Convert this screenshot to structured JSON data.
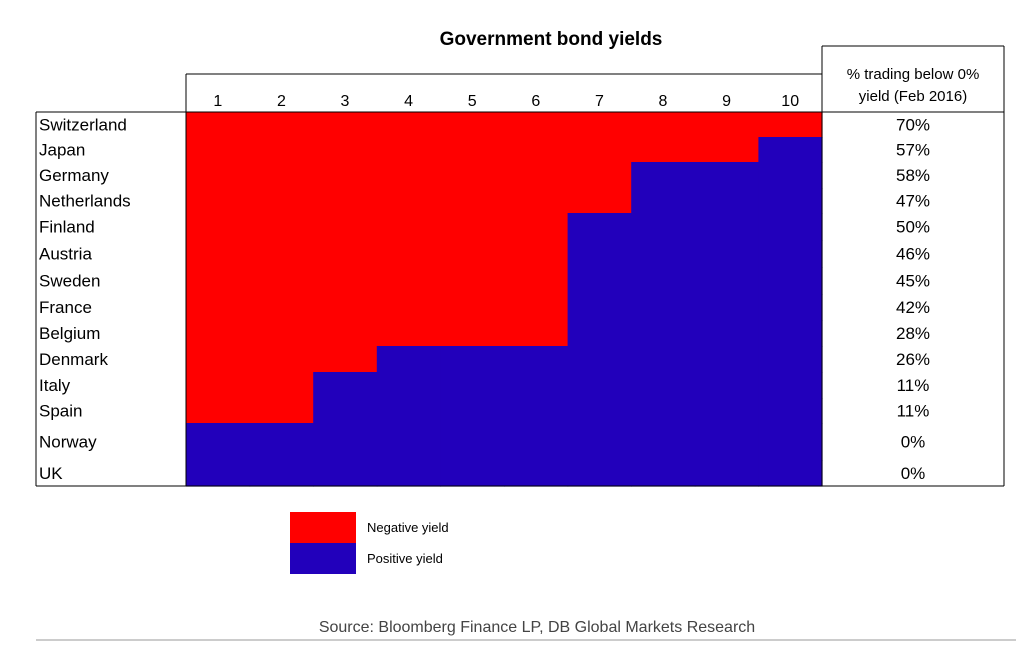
{
  "chart_data": {
    "type": "heatmap",
    "title": "Government bond yields",
    "x_categories": [
      "1",
      "2",
      "3",
      "4",
      "5",
      "6",
      "7",
      "8",
      "9",
      "10"
    ],
    "countries": [
      "Switzerland",
      "Japan",
      "Germany",
      "Netherlands",
      "Finland",
      "Austria",
      "Sweden",
      "France",
      "Belgium",
      "Denmark",
      "Italy",
      "Spain",
      "Norway",
      "UK"
    ],
    "negative_up_to_maturity": [
      10,
      9,
      7,
      7,
      6,
      6,
      6,
      6,
      6,
      3,
      2,
      2,
      0,
      0
    ],
    "right_column_header": [
      "% trading below 0%",
      "yield (Feb 2016)"
    ],
    "pct_below_zero": [
      "70%",
      "57%",
      "58%",
      "47%",
      "50%",
      "46%",
      "45%",
      "42%",
      "28%",
      "26%",
      "11%",
      "11%",
      "0%",
      "0%"
    ],
    "legend": [
      {
        "label": "Negative yield",
        "color": "#ff0000"
      },
      {
        "label": "Positive yield",
        "color": "#2200bb"
      }
    ],
    "source": "Source: Bloomberg Finance LP, DB Global Markets Research"
  }
}
